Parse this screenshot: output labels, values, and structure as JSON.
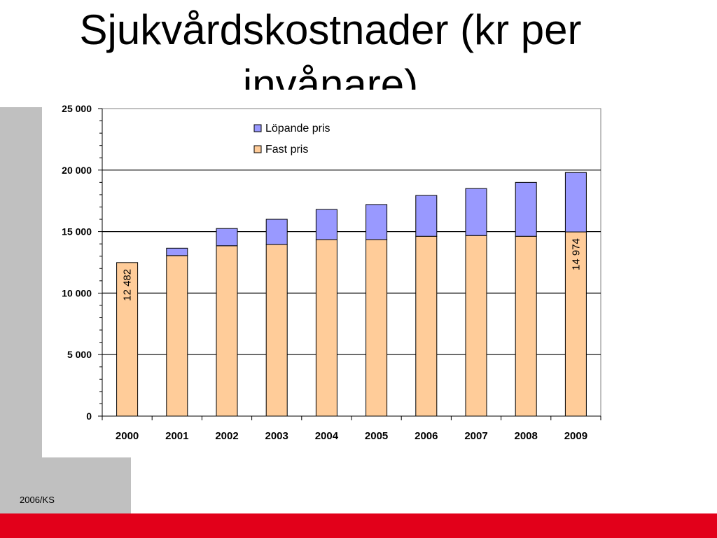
{
  "slide": {
    "title": "Sjukvårdskostnader (kr per invånare)",
    "footer": "2006/KS"
  },
  "colors": {
    "fixed": "#ffcc99",
    "current": "#9999ff",
    "accent_red": "#e2001a",
    "side_gray": "#c0c0c0"
  },
  "chart_data": {
    "type": "bar",
    "stacked": true,
    "categories": [
      "2000",
      "2001",
      "2002",
      "2003",
      "2004",
      "2005",
      "2006",
      "2007",
      "2008",
      "2009"
    ],
    "series": [
      {
        "name": "Fast pris",
        "color": "#ffcc99",
        "values": [
          12482,
          13050,
          13850,
          13950,
          14350,
          14350,
          14620,
          14680,
          14620,
          14974
        ]
      },
      {
        "name": "Löpande pris",
        "color": "#9999ff",
        "values": [
          0,
          600,
          1400,
          2050,
          2450,
          2850,
          3320,
          3820,
          4380,
          4830
        ]
      }
    ],
    "data_labels": [
      {
        "category": "2000",
        "series": "Fast pris",
        "text": "12 482"
      },
      {
        "category": "2009",
        "series": "Fast pris",
        "text": "14 974"
      }
    ],
    "ylim": [
      0,
      25000
    ],
    "yticks": [
      0,
      5000,
      10000,
      15000,
      20000,
      25000
    ],
    "ytick_labels": [
      "0",
      "5 000",
      "10 000",
      "15 000",
      "20 000",
      "25 000"
    ],
    "legend": {
      "placement": "top-center",
      "entries": [
        "Löpande pris",
        "Fast pris"
      ]
    },
    "grid": true,
    "title": "",
    "xlabel": "",
    "ylabel": ""
  }
}
